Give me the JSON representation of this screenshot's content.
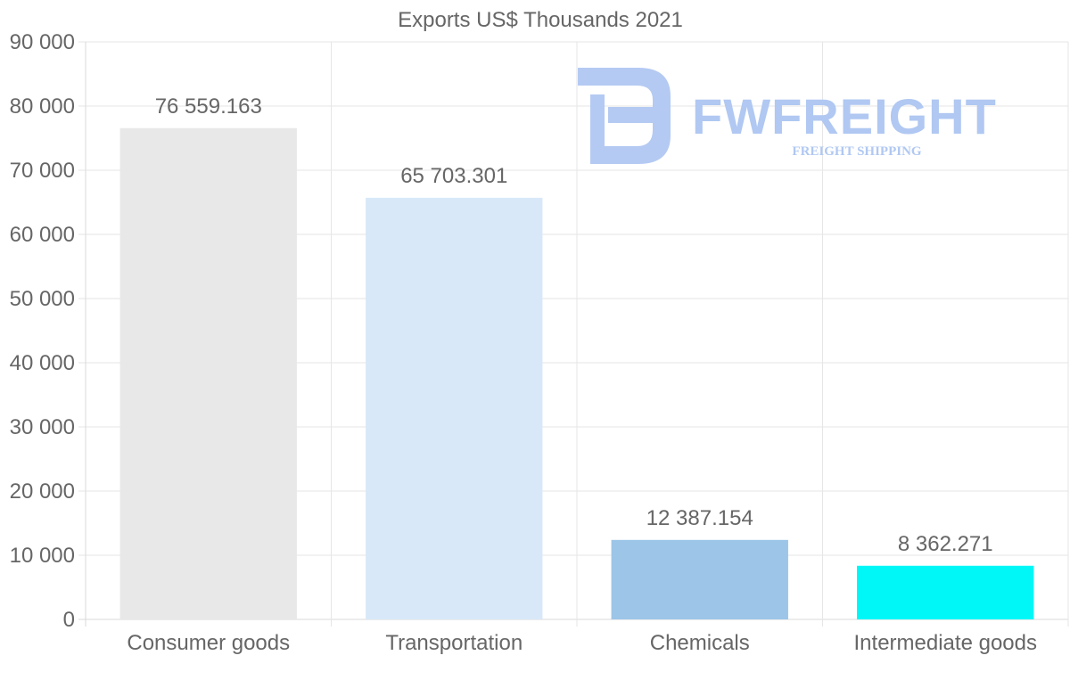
{
  "chart_data": {
    "type": "bar",
    "title": "Exports US$ Thousands 2021",
    "categories": [
      "Consumer goods",
      "Transportation",
      "Chemicals",
      "Intermediate goods"
    ],
    "values": [
      76559.163,
      65703.301,
      12387.154,
      8362.271
    ],
    "value_labels": [
      "76 559.163",
      "65 703.301",
      "12 387.154",
      "8 362.271"
    ],
    "bar_colors": [
      "#e8e8e8",
      "#d8e8f9",
      "#9cc5e8",
      "#00f7f7"
    ],
    "ylim": [
      0,
      90000
    ],
    "ytick_step": 10000,
    "ytick_labels": [
      "0",
      "10 000",
      "20 000",
      "30 000",
      "40 000",
      "50 000",
      "60 000",
      "70 000",
      "80 000",
      "90 000"
    ],
    "grid": true,
    "xlabel": "",
    "ylabel": ""
  },
  "watermark": {
    "brand": "FWFREIGHT",
    "tagline": "FREIGHT SHIPPING",
    "color": "#b0c8f2"
  }
}
